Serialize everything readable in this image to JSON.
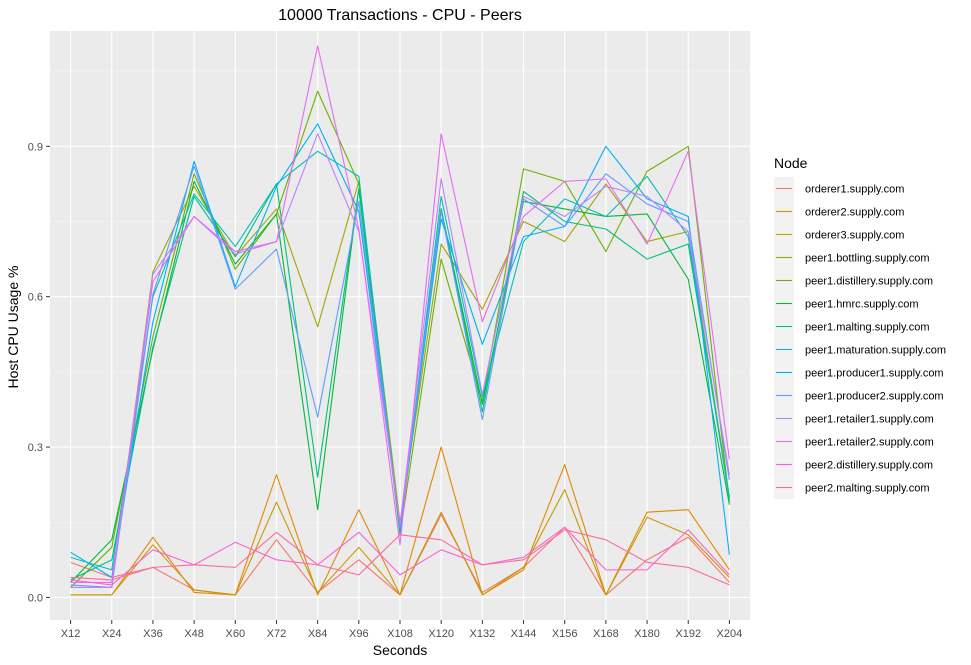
{
  "chart_data": {
    "type": "line",
    "title": "10000 Transactions - CPU - Peers",
    "xlabel": "Seconds",
    "ylabel": "Host CPU Usage %",
    "categories": [
      "X12",
      "X24",
      "X36",
      "X48",
      "X60",
      "X72",
      "X84",
      "X96",
      "X108",
      "X120",
      "X132",
      "X144",
      "X156",
      "X168",
      "X180",
      "X192",
      "X204"
    ],
    "ylim": [
      -0.045,
      1.13
    ],
    "yticks": [
      0.0,
      0.3,
      0.6,
      0.9
    ],
    "ytick_labels": [
      "0.0",
      "0.3",
      "0.6",
      "0.9"
    ],
    "grid": true,
    "legend_title": "Node",
    "legend_position": "right",
    "series": [
      {
        "name": "orderer1.supply.com",
        "color": "#F8766D",
        "values": [
          0.07,
          0.04,
          0.06,
          0.015,
          0.005,
          0.115,
          0.01,
          0.075,
          0.005,
          0.165,
          0.01,
          0.06,
          0.14,
          0.005,
          0.075,
          0.12,
          0.03
        ]
      },
      {
        "name": "orderer2.supply.com",
        "color": "#E58700",
        "values": [
          0.005,
          0.005,
          0.12,
          0.01,
          0.005,
          0.245,
          0.005,
          0.175,
          0.005,
          0.3,
          0.005,
          0.055,
          0.265,
          0.005,
          0.17,
          0.175,
          0.055
        ]
      },
      {
        "name": "orderer3.supply.com",
        "color": "#C99800",
        "values": [
          0.005,
          0.005,
          0.105,
          0.015,
          0.005,
          0.19,
          0.01,
          0.1,
          0.005,
          0.17,
          0.005,
          0.06,
          0.215,
          0.005,
          0.16,
          0.125,
          0.04
        ]
      },
      {
        "name": "peer1.bottling.supply.com",
        "color": "#A3A500",
        "values": [
          0.02,
          0.02,
          0.65,
          0.82,
          0.68,
          0.775,
          0.54,
          0.83,
          0.15,
          0.705,
          0.575,
          0.75,
          0.71,
          0.825,
          0.71,
          0.73,
          0.2
        ]
      },
      {
        "name": "peer1.distillery.supply.com",
        "color": "#6BB100",
        "values": [
          0.02,
          0.1,
          0.52,
          0.845,
          0.655,
          0.765,
          1.01,
          0.825,
          0.125,
          0.675,
          0.39,
          0.855,
          0.83,
          0.69,
          0.85,
          0.9,
          0.19
        ]
      },
      {
        "name": "peer1.hmrc.supply.com",
        "color": "#00BA38",
        "values": [
          0.03,
          0.115,
          0.495,
          0.83,
          0.665,
          0.765,
          0.175,
          0.815,
          0.13,
          0.775,
          0.385,
          0.79,
          0.775,
          0.76,
          0.765,
          0.635,
          0.185
        ]
      },
      {
        "name": "peer1.malting.supply.com",
        "color": "#00BF7D",
        "values": [
          0.035,
          0.075,
          0.5,
          0.8,
          0.68,
          0.825,
          0.24,
          0.815,
          0.135,
          0.775,
          0.37,
          0.81,
          0.75,
          0.735,
          0.675,
          0.705,
          0.2
        ]
      },
      {
        "name": "peer1.maturation.supply.com",
        "color": "#00C0B8",
        "values": [
          0.08,
          0.055,
          0.6,
          0.805,
          0.7,
          0.825,
          0.89,
          0.84,
          0.13,
          0.8,
          0.4,
          0.71,
          0.795,
          0.76,
          0.84,
          0.72,
          0.195
        ]
      },
      {
        "name": "peer1.producer1.supply.com",
        "color": "#00B0F6",
        "values": [
          0.09,
          0.04,
          0.55,
          0.87,
          0.62,
          0.82,
          0.945,
          0.77,
          0.135,
          0.755,
          0.505,
          0.72,
          0.74,
          0.9,
          0.795,
          0.76,
          0.085
        ]
      },
      {
        "name": "peer1.producer2.supply.com",
        "color": "#619CFF",
        "values": [
          0.025,
          0.02,
          0.605,
          0.86,
          0.615,
          0.695,
          0.36,
          0.79,
          0.14,
          0.77,
          0.355,
          0.795,
          0.74,
          0.845,
          0.785,
          0.75,
          0.235
        ]
      },
      {
        "name": "peer1.retailer1.supply.com",
        "color": "#B983FF",
        "values": [
          0.02,
          0.02,
          0.645,
          0.76,
          0.685,
          0.71,
          0.925,
          0.73,
          0.145,
          0.835,
          0.405,
          0.8,
          0.76,
          0.82,
          0.8,
          0.73,
          0.245
        ]
      },
      {
        "name": "peer1.retailer2.supply.com",
        "color": "#E76BF3",
        "values": [
          0.03,
          0.03,
          0.63,
          0.76,
          0.69,
          0.71,
          1.1,
          0.735,
          0.105,
          0.925,
          0.55,
          0.76,
          0.83,
          0.835,
          0.705,
          0.89,
          0.275
        ]
      },
      {
        "name": "peer2.distillery.supply.com",
        "color": "#FD61D1",
        "values": [
          0.035,
          0.025,
          0.095,
          0.065,
          0.11,
          0.075,
          0.065,
          0.13,
          0.045,
          0.095,
          0.065,
          0.08,
          0.14,
          0.055,
          0.055,
          0.135,
          0.045
        ]
      },
      {
        "name": "peer2.malting.supply.com",
        "color": "#FF67A4",
        "values": [
          0.04,
          0.035,
          0.06,
          0.065,
          0.06,
          0.13,
          0.065,
          0.045,
          0.125,
          0.115,
          0.065,
          0.075,
          0.135,
          0.115,
          0.07,
          0.06,
          0.025
        ]
      }
    ]
  }
}
